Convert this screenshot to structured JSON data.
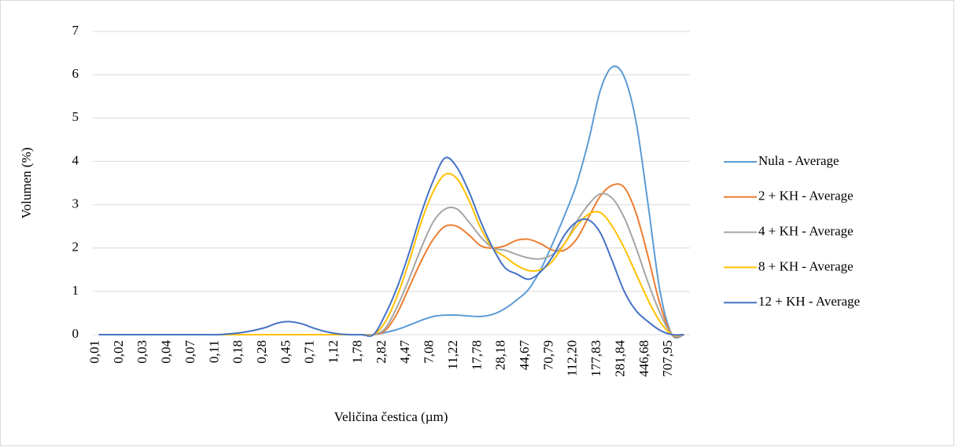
{
  "chart_data": {
    "type": "line",
    "x_label": "Veličina čestica (µm)",
    "y_label": "Volumen (%)",
    "categories": [
      "0,01",
      null,
      "0,02",
      null,
      "0,03",
      null,
      "0,04",
      null,
      "0,07",
      null,
      "0,11",
      null,
      "0,18",
      null,
      "0,28",
      null,
      "0,45",
      null,
      "0,71",
      null,
      "1,12",
      null,
      "1,78",
      null,
      "2,82",
      null,
      "4,47",
      null,
      "7,08",
      null,
      "11,22",
      null,
      "17,78",
      null,
      "28,18",
      null,
      "44,67",
      null,
      "70,79",
      null,
      "112,20",
      null,
      "177,83",
      null,
      "281,84",
      null,
      "446,68",
      null,
      "707,95",
      null
    ],
    "series": [
      {
        "name": "Nula  - Average",
        "color": "#5b9bd5",
        "values": [
          0,
          0,
          0,
          0,
          0,
          0,
          0,
          0,
          0,
          0,
          0,
          0,
          0,
          0,
          0,
          0,
          0,
          0,
          0,
          0,
          0,
          0,
          0,
          0,
          0.05,
          0.12,
          0.22,
          0.33,
          0.42,
          0.45,
          0.45,
          0.43,
          0.42,
          0.47,
          0.6,
          0.8,
          1.05,
          1.5,
          2.1,
          2.75,
          3.47,
          4.46,
          5.64,
          6.18,
          5.95,
          4.9,
          3.0,
          1.0,
          0,
          0
        ]
      },
      {
        "name": "2 + KH  - Average",
        "color": "#ed7d31",
        "values": [
          0,
          0,
          0,
          0,
          0,
          0,
          0,
          0,
          0,
          0,
          0,
          0,
          0,
          0,
          0,
          0,
          0,
          0,
          0,
          0,
          0,
          0,
          0,
          0,
          0.1,
          0.5,
          1.1,
          1.7,
          2.2,
          2.5,
          2.5,
          2.3,
          2.05,
          2.0,
          2.05,
          2.18,
          2.2,
          2.1,
          1.95,
          1.95,
          2.2,
          2.7,
          3.2,
          3.45,
          3.4,
          2.8,
          1.8,
          0.7,
          0,
          0
        ]
      },
      {
        "name": "4 + KH  - Average",
        "color": "#a5a5a5",
        "values": [
          0,
          0,
          0,
          0,
          0,
          0,
          0,
          0,
          0,
          0,
          0,
          0,
          0,
          0,
          0,
          0,
          0,
          0,
          0,
          0,
          0,
          0,
          0,
          0,
          0.15,
          0.65,
          1.3,
          2.0,
          2.6,
          2.9,
          2.9,
          2.6,
          2.25,
          2.0,
          1.95,
          1.85,
          1.77,
          1.75,
          1.85,
          2.1,
          2.6,
          3.0,
          3.25,
          3.15,
          2.7,
          2.0,
          1.2,
          0.5,
          0,
          0
        ]
      },
      {
        "name": "8 + KH  - Average",
        "color": "#ffc000",
        "values": [
          0,
          0,
          0,
          0,
          0,
          0,
          0,
          0,
          0,
          0,
          0,
          0,
          0,
          0,
          0,
          0,
          0,
          0,
          0,
          0,
          0,
          0,
          0,
          0,
          0.3,
          0.9,
          1.7,
          2.6,
          3.3,
          3.7,
          3.6,
          3.1,
          2.45,
          2.0,
          1.8,
          1.6,
          1.48,
          1.5,
          1.7,
          2.1,
          2.5,
          2.78,
          2.82,
          2.5,
          2.0,
          1.4,
          0.8,
          0.3,
          0,
          0
        ]
      },
      {
        "name": "12 + KH  - Average",
        "color": "#4472c4",
        "values": [
          0,
          0,
          0,
          0,
          0,
          0,
          0,
          0,
          0,
          0,
          0,
          0.02,
          0.05,
          0.1,
          0.17,
          0.27,
          0.3,
          0.25,
          0.15,
          0.07,
          0.02,
          0,
          0,
          0,
          0.47,
          1.1,
          1.9,
          2.8,
          3.55,
          4.08,
          3.86,
          3.3,
          2.6,
          2.0,
          1.55,
          1.4,
          1.28,
          1.45,
          1.8,
          2.3,
          2.6,
          2.65,
          2.35,
          1.7,
          1.0,
          0.55,
          0.3,
          0.1,
          0,
          0
        ]
      }
    ],
    "ylim": [
      0,
      7
    ],
    "yticks": [
      0,
      1,
      2,
      3,
      4,
      5,
      6,
      7
    ],
    "grid": true,
    "legend": "right"
  }
}
